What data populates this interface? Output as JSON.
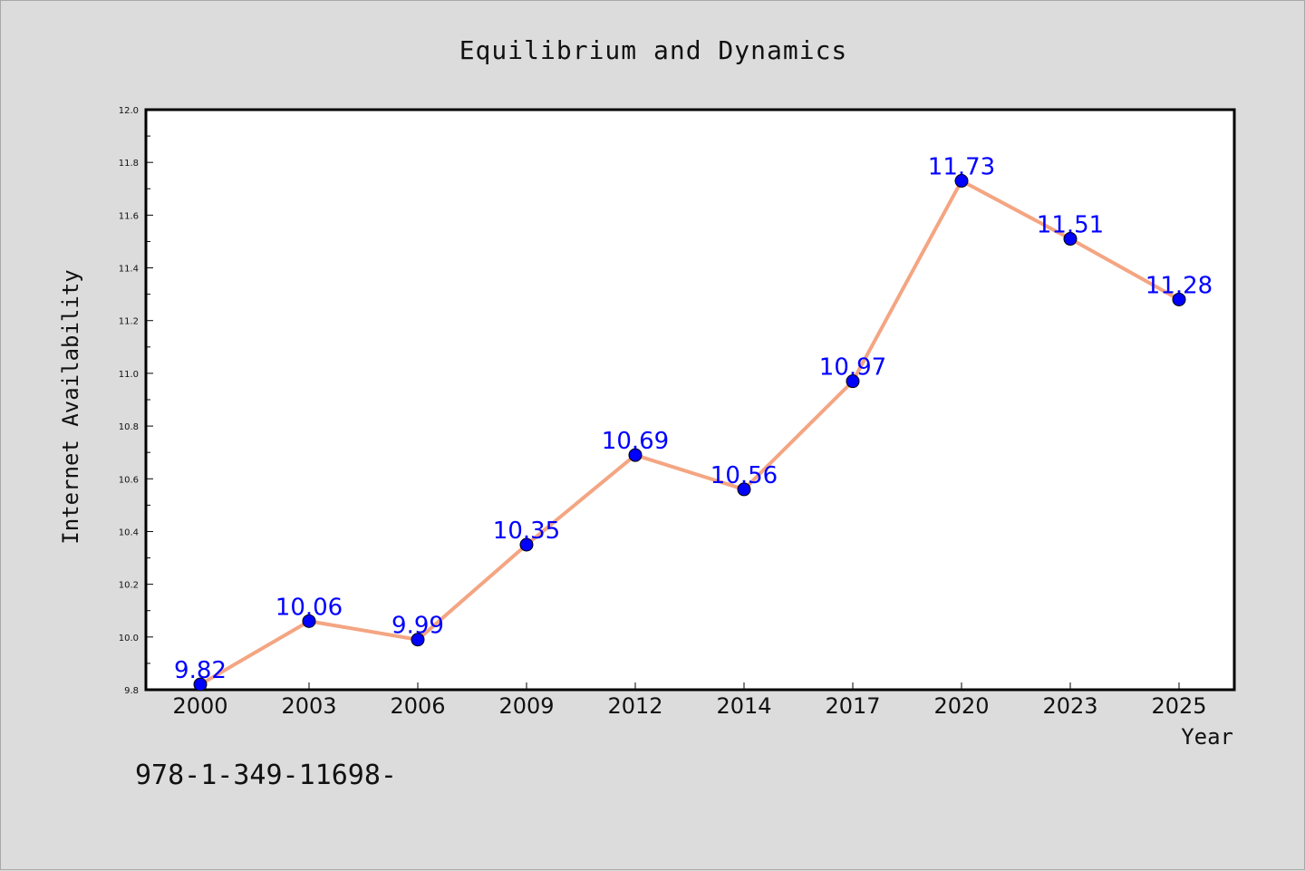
{
  "chart_data": {
    "type": "line",
    "title": "Equilibrium and Dynamics",
    "xlabel": "Year",
    "ylabel": "Internet Availability",
    "categories": [
      "2000",
      "2003",
      "2006",
      "2009",
      "2012",
      "2014",
      "2017",
      "2020",
      "2023",
      "2025"
    ],
    "series": [
      {
        "values": [
          9.82,
          10.06,
          9.99,
          10.35,
          10.69,
          10.56,
          10.97,
          11.73,
          11.51,
          11.28
        ]
      }
    ],
    "data_labels": [
      "9.82",
      "10.06",
      "9.99",
      "10.35",
      "10.69",
      "10.56",
      "10.97",
      "11.73",
      "11.51",
      "11.28"
    ],
    "ylim": [
      9.8,
      12.0
    ],
    "yticks": [
      "9.8",
      "10.0",
      "10.2",
      "10.4",
      "10.6",
      "10.8",
      "11.0",
      "11.2",
      "11.4",
      "11.6",
      "11.8",
      "12.0"
    ],
    "grid": false,
    "legend": "none",
    "colors": {
      "line": "#f4a582",
      "marker": "#0000ff",
      "label": "#0000ff",
      "background": "#dcdcdc",
      "plot_area": "#ffffff"
    }
  },
  "footer": {
    "text": "978-1-349-11698-"
  }
}
